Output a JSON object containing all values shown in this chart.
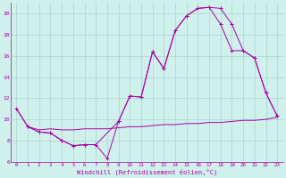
{
  "xlabel": "Windchill (Refroidissement éolien,°C)",
  "background_color": "#cff0eb",
  "grid_color": "#aad4cc",
  "line_color": "#aa00aa",
  "xlim": [
    -0.5,
    23.5
  ],
  "ylim": [
    6,
    21
  ],
  "yticks": [
    6,
    8,
    10,
    12,
    14,
    16,
    18,
    20
  ],
  "xticks": [
    0,
    1,
    2,
    3,
    4,
    5,
    6,
    7,
    8,
    9,
    10,
    11,
    12,
    13,
    14,
    15,
    16,
    17,
    18,
    19,
    20,
    21,
    22,
    23
  ],
  "line1_x": [
    0,
    1,
    2,
    3,
    4,
    5,
    6,
    7,
    8,
    9,
    10,
    11,
    12,
    13,
    14,
    15,
    16,
    17,
    18,
    19,
    20,
    21,
    22,
    23
  ],
  "line1_y": [
    11.0,
    9.3,
    8.8,
    8.7,
    8.0,
    7.5,
    7.6,
    7.6,
    6.3,
    9.8,
    12.2,
    12.1,
    16.4,
    14.8,
    18.4,
    19.8,
    20.5,
    20.6,
    20.5,
    19.0,
    16.5,
    15.8,
    12.5,
    10.3
  ],
  "line2_x": [
    0,
    1,
    2,
    3,
    4,
    5,
    6,
    7,
    8,
    9,
    10,
    11,
    12,
    13,
    14,
    15,
    16,
    17,
    18,
    19,
    20,
    21,
    22,
    23
  ],
  "line2_y": [
    11.0,
    9.3,
    9.0,
    9.1,
    9.0,
    9.0,
    9.1,
    9.1,
    9.1,
    9.2,
    9.3,
    9.3,
    9.4,
    9.5,
    9.5,
    9.6,
    9.6,
    9.7,
    9.7,
    9.8,
    9.9,
    9.9,
    10.0,
    10.2
  ],
  "line3_x": [
    1,
    2,
    3,
    4,
    5,
    6,
    7,
    9,
    10,
    11,
    12,
    13,
    14,
    15,
    16,
    17,
    18,
    19,
    20,
    21,
    22,
    23
  ],
  "line3_y": [
    9.3,
    8.8,
    8.7,
    8.0,
    7.5,
    7.6,
    7.6,
    9.8,
    12.2,
    12.1,
    16.4,
    14.8,
    18.4,
    19.8,
    20.5,
    20.6,
    19.0,
    16.5,
    16.5,
    15.8,
    12.5,
    10.3
  ]
}
